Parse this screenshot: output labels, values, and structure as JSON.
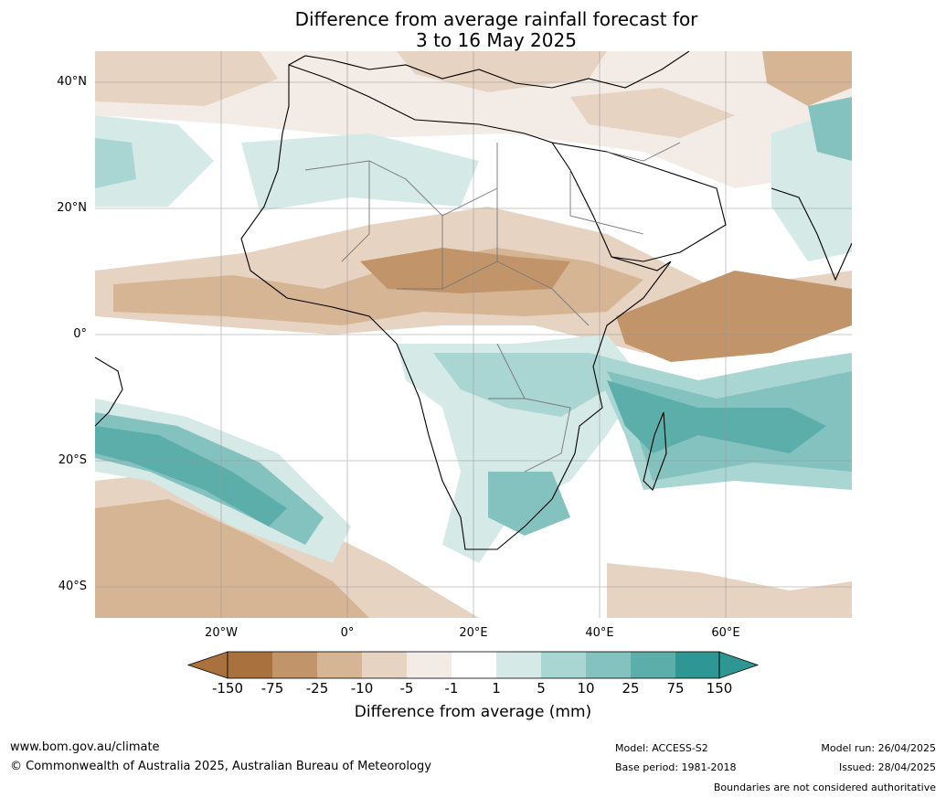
{
  "title": {
    "line1": "Difference from average rainfall forecast for",
    "line2": "3 to 16 May 2025"
  },
  "map": {
    "lat_labels": [
      "40°N",
      "20°N",
      "0°",
      "20°S",
      "40°S"
    ],
    "lon_labels": [
      "20°W",
      "0°",
      "20°E",
      "40°E",
      "60°E"
    ],
    "colors": {
      "very_dry": "#a9713d",
      "dry_75": "#c1946a",
      "dry_25": "#d6b595",
      "dry_10": "#e6d3c1",
      "dry_5": "#f3ece6",
      "neutral": "#ffffff",
      "wet_5": "#d5e9e7",
      "wet_10": "#a9d6d3",
      "wet_25": "#84c2bf",
      "wet_75": "#5baeaa",
      "very_wet": "#2f9793"
    }
  },
  "colorbar": {
    "ticks": [
      "-150",
      "-75",
      "-25",
      "-10",
      "-5",
      "-1",
      "1",
      "5",
      "10",
      "25",
      "75",
      "150"
    ],
    "label": "Difference from average (mm)"
  },
  "footer": {
    "url": "www.bom.gov.au/climate",
    "copyright": "© Commonwealth of Australia 2025, Australian Bureau of Meteorology",
    "model": "Model: ACCESS-S2",
    "base_period": "Base period: 1981-2018",
    "model_run": "Model run: 26/04/2025",
    "issued": "Issued: 28/04/2025",
    "disclaimer": "Boundaries are not considered authoritative"
  }
}
